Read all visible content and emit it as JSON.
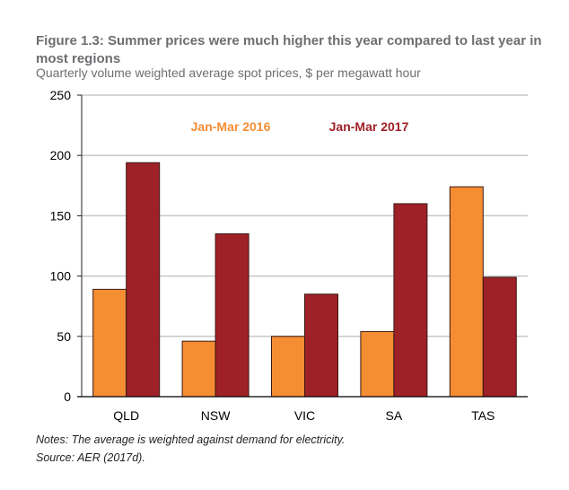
{
  "figure": {
    "title": "Figure 1.3: Summer prices were much higher this year compared to last year in most regions",
    "subtitle": "Quarterly volume weighted average spot prices, $ per megawatt hour",
    "notes": "Notes: The average is weighted against demand for electricity.",
    "source": "Source: AER (2017d)."
  },
  "chart_data": {
    "type": "bar",
    "title": "Figure 1.3: Summer prices were much higher this year compared to last year in most regions",
    "subtitle": "Quarterly volume weighted average spot prices, $ per megawatt hour",
    "xlabel": "",
    "ylabel": "$ per megawatt hour",
    "categories": [
      "QLD",
      "NSW",
      "VIC",
      "SA",
      "TAS"
    ],
    "series": [
      {
        "name": "Jan-Mar 2016",
        "color": "#f58d33",
        "values": [
          89,
          46,
          50,
          54,
          174
        ]
      },
      {
        "name": "Jan-Mar 2017",
        "color": "#9e2127",
        "values": [
          194,
          135,
          85,
          160,
          99
        ]
      }
    ],
    "ylim": [
      0,
      250
    ],
    "yticks": [
      0,
      50,
      100,
      150,
      200,
      250
    ],
    "grid": true,
    "legend": "top-center"
  }
}
